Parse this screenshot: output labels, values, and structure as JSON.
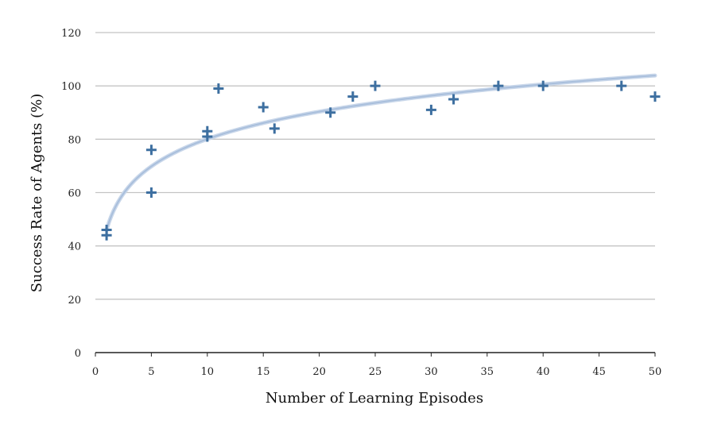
{
  "chart_data": {
    "type": "scatter",
    "xlabel": "Number of Learning Episodes",
    "ylabel": "Success Rate of Agents (%)",
    "xlim": [
      0,
      50
    ],
    "ylim": [
      0,
      120
    ],
    "x_ticks": [
      0,
      5,
      10,
      15,
      20,
      25,
      30,
      35,
      40,
      45,
      50
    ],
    "y_ticks": [
      0,
      20,
      40,
      60,
      80,
      100,
      120
    ],
    "x_tick_labels": [
      "0",
      "5",
      "10",
      "15",
      "20",
      "25",
      "30",
      "35",
      "40",
      "45",
      "50"
    ],
    "y_tick_labels": [
      "0",
      "20",
      "40",
      "60",
      "80",
      "100",
      "120"
    ],
    "grid": "horizontal",
    "legend": "none",
    "marker": "plus",
    "points": [
      {
        "x": 1,
        "y": 44
      },
      {
        "x": 1,
        "y": 46
      },
      {
        "x": 5,
        "y": 60
      },
      {
        "x": 5,
        "y": 76
      },
      {
        "x": 10,
        "y": 81
      },
      {
        "x": 10,
        "y": 83
      },
      {
        "x": 11,
        "y": 99
      },
      {
        "x": 15,
        "y": 92
      },
      {
        "x": 16,
        "y": 84
      },
      {
        "x": 21,
        "y": 90
      },
      {
        "x": 23,
        "y": 96
      },
      {
        "x": 25,
        "y": 100
      },
      {
        "x": 30,
        "y": 91
      },
      {
        "x": 32,
        "y": 95
      },
      {
        "x": 36,
        "y": 100
      },
      {
        "x": 40,
        "y": 100
      },
      {
        "x": 47,
        "y": 100
      },
      {
        "x": 50,
        "y": 96
      }
    ],
    "trendline": {
      "type": "logarithmic",
      "intercept": 46,
      "slope": 14.8
    },
    "colors": {
      "marker": "#3d6fa0",
      "trendline": "#a9bfdc",
      "grid": "#c4c4c4",
      "axis": "#222222"
    }
  }
}
